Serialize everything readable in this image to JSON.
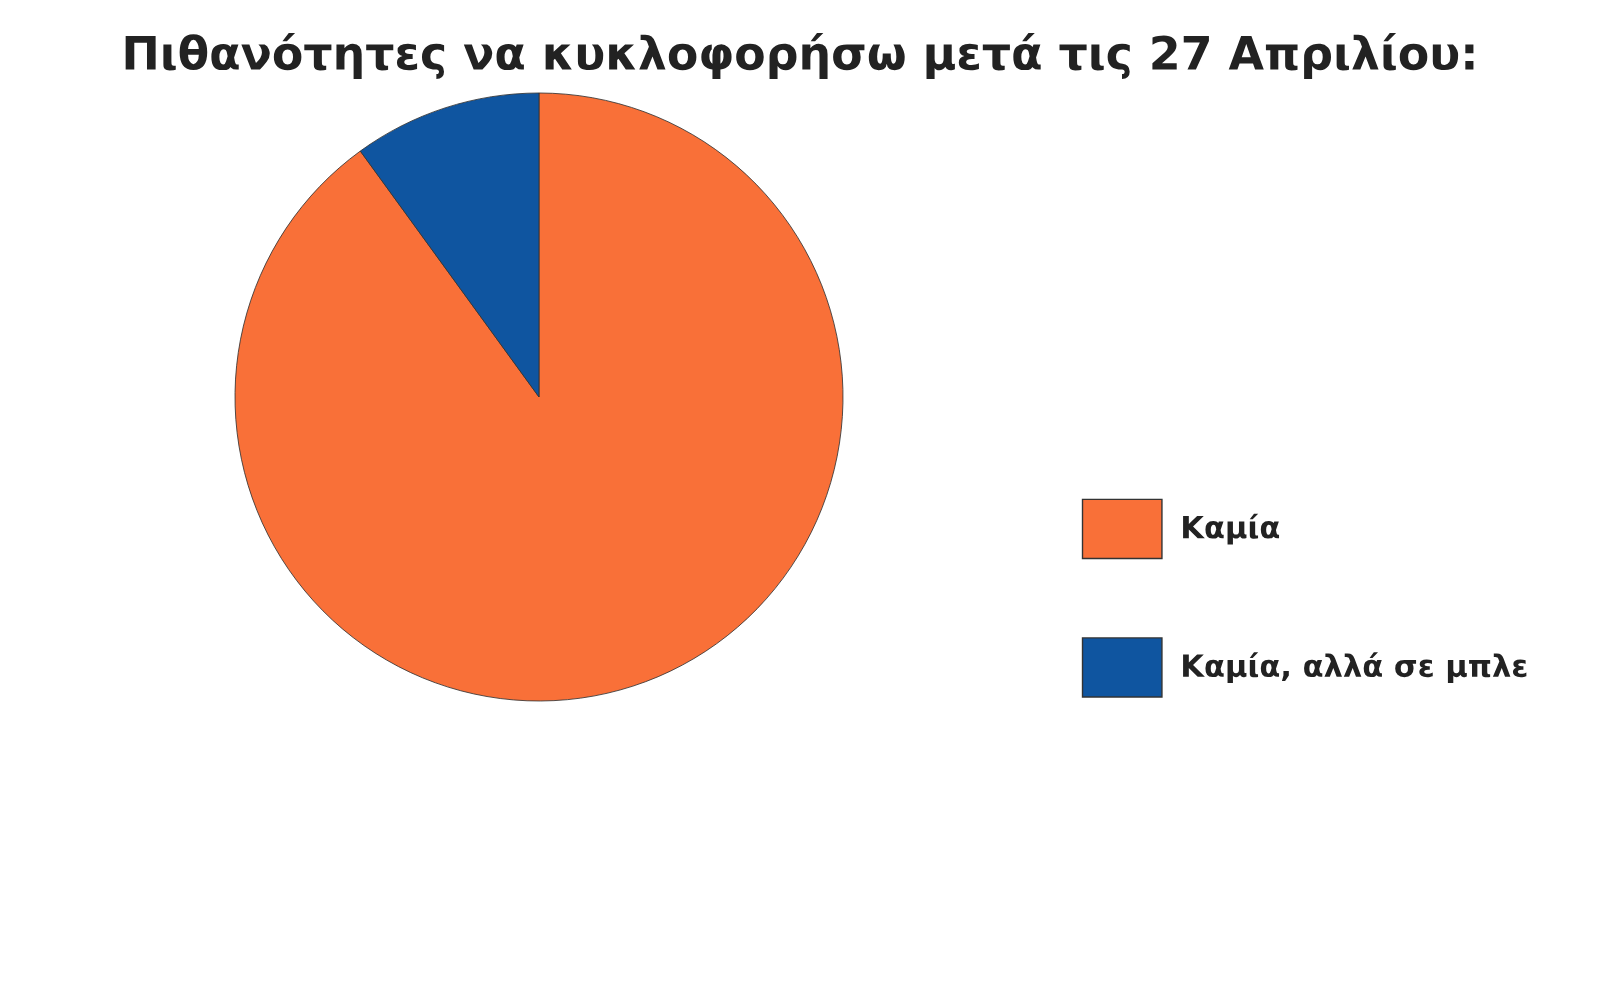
{
  "chart_data": {
    "type": "pie",
    "title": "Πιθανότητες να κυκλοφορήσω μετά τις 27 Απριλίου:",
    "categories": [
      "Καμία",
      "Καμία, αλλά σε μπλε"
    ],
    "values": [
      90,
      10
    ],
    "colors": [
      "#f97038",
      "#0f55a0"
    ],
    "legend": "right"
  }
}
